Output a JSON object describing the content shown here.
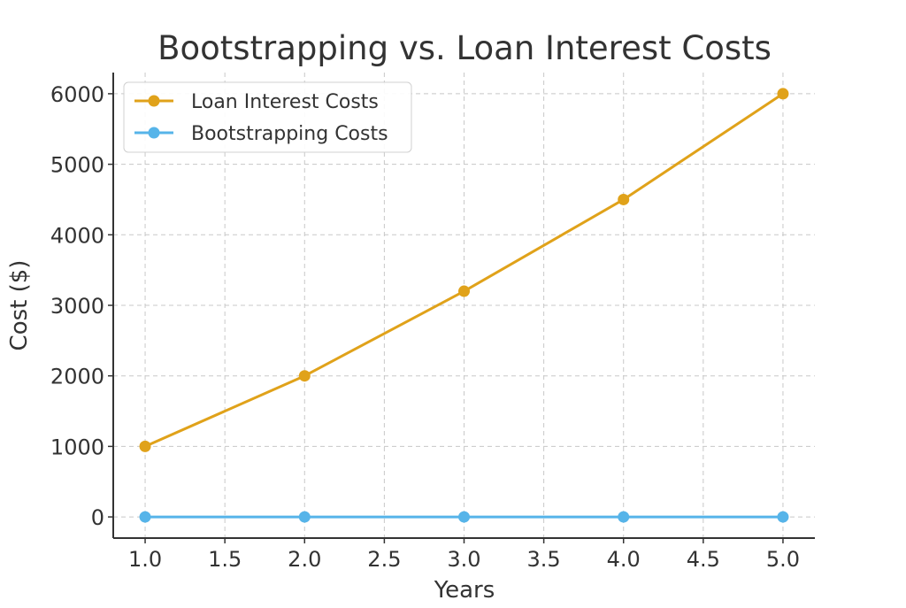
{
  "chart_data": {
    "type": "line",
    "title": "Bootstrapping vs. Loan Interest Costs",
    "xlabel": "Years",
    "ylabel": "Cost ($)",
    "x": [
      1,
      2,
      3,
      4,
      5
    ],
    "xlim": [
      0.8,
      5.2
    ],
    "ylim": [
      -300,
      6300
    ],
    "x_ticks": [
      1.0,
      1.5,
      2.0,
      2.5,
      3.0,
      3.5,
      4.0,
      4.5,
      5.0
    ],
    "x_tick_labels": [
      "1.0",
      "1.5",
      "2.0",
      "2.5",
      "3.0",
      "3.5",
      "4.0",
      "4.5",
      "5.0"
    ],
    "y_ticks": [
      0,
      1000,
      2000,
      3000,
      4000,
      5000,
      6000
    ],
    "y_tick_labels": [
      "0",
      "1000",
      "2000",
      "3000",
      "4000",
      "5000",
      "6000"
    ],
    "grid": true,
    "legend_position": "top-left",
    "series": [
      {
        "name": "Loan Interest Costs",
        "color": "#E0A21A",
        "values": [
          1000,
          2000,
          3200,
          4500,
          6000
        ]
      },
      {
        "name": "Bootstrapping Costs",
        "color": "#56B4E9",
        "values": [
          0,
          0,
          0,
          0,
          0
        ]
      }
    ]
  }
}
